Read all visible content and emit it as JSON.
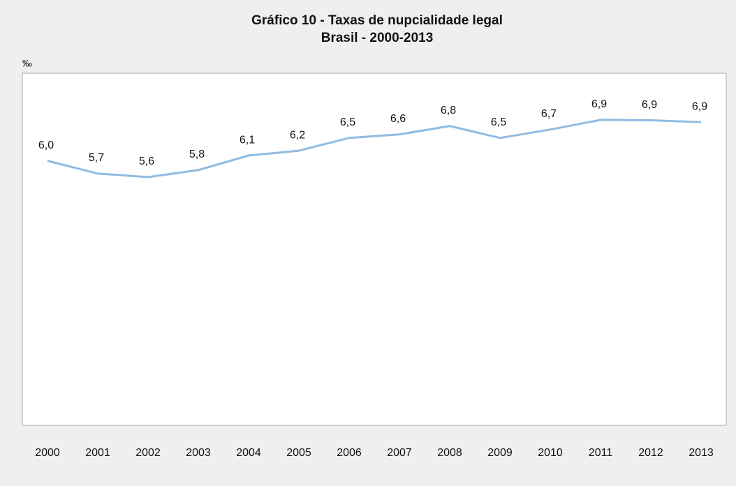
{
  "chart_data": {
    "type": "line",
    "title": "Gráfico 10 - Taxas de nupcialidade legal",
    "subtitle": "Brasil - 2000-2013",
    "y_label": "‰",
    "categories": [
      "2000",
      "2001",
      "2002",
      "2003",
      "2004",
      "2005",
      "2006",
      "2007",
      "2008",
      "2009",
      "2010",
      "2011",
      "2012",
      "2013"
    ],
    "series": [
      {
        "name": "Taxa de nupcialidade legal",
        "color": "#8fbbe3",
        "values": [
          6.01,
          5.72,
          5.64,
          5.8,
          6.13,
          6.24,
          6.53,
          6.61,
          6.8,
          6.53,
          6.72,
          6.94,
          6.93,
          6.89
        ],
        "value_labels": [
          "6,0",
          "5,7",
          "5,6",
          "5,8",
          "6,1",
          "6,2",
          "6,5",
          "6,6",
          "6,8",
          "6,5",
          "6,7",
          "6,9",
          "6,9",
          "6,9"
        ]
      }
    ],
    "ylim": [
      0,
      8
    ]
  }
}
